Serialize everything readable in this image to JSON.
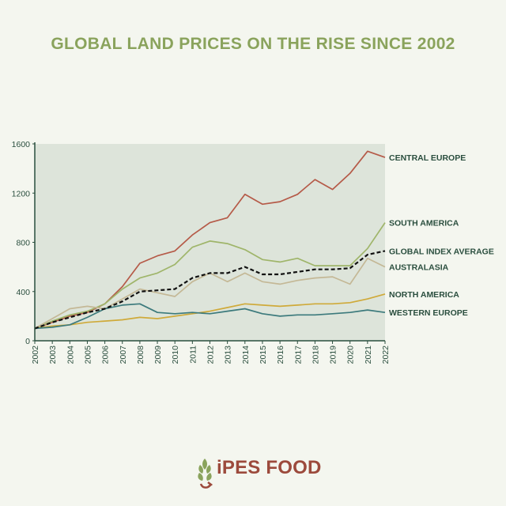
{
  "colors": {
    "background": "#f4f6ef",
    "plot_background": "#dde4da",
    "title": "#8aa35c",
    "axis": "#2a4e3e",
    "logo": "#9c4a3c",
    "logo_leaf": "#8aa35c"
  },
  "logo": {
    "text": "iPES FOOD"
  },
  "chart_data": {
    "type": "line",
    "title": "GLOBAL LAND PRICES ON THE RISE SINCE 2002",
    "xlabel": "",
    "ylabel": "",
    "ylim": [
      0,
      1600
    ],
    "yticks": [
      0,
      400,
      800,
      1200,
      1600
    ],
    "grid": false,
    "legend": "inline-right",
    "categories": [
      "2002",
      "2003",
      "2004",
      "2005",
      "2006",
      "2007",
      "2008",
      "2009",
      "2010",
      "2011",
      "2012",
      "2013",
      "2014",
      "2015",
      "2016",
      "2017",
      "2018",
      "2019",
      "2020",
      "2021",
      "2022"
    ],
    "series": [
      {
        "name": "CENTRAL EUROPE",
        "color": "#b55a48",
        "dashed": false,
        "values": [
          100,
          150,
          200,
          230,
          300,
          440,
          630,
          690,
          730,
          860,
          960,
          1000,
          1190,
          1110,
          1130,
          1190,
          1310,
          1230,
          1360,
          1540,
          1490
        ]
      },
      {
        "name": "SOUTH AMERICA",
        "color": "#9fb56a",
        "dashed": false,
        "values": [
          100,
          160,
          210,
          240,
          300,
          420,
          510,
          550,
          620,
          760,
          810,
          790,
          740,
          660,
          640,
          670,
          610,
          610,
          610,
          750,
          960
        ]
      },
      {
        "name": "GLOBAL INDEX AVERAGE",
        "color": "#111111",
        "dashed": true,
        "values": [
          100,
          150,
          190,
          230,
          260,
          320,
          400,
          410,
          420,
          510,
          550,
          550,
          600,
          540,
          540,
          560,
          580,
          580,
          590,
          700,
          730
        ]
      },
      {
        "name": "AUSTRALASIA",
        "color": "#c4b896",
        "dashed": false,
        "values": [
          100,
          180,
          260,
          280,
          260,
          340,
          420,
          390,
          360,
          480,
          550,
          480,
          550,
          480,
          460,
          490,
          510,
          520,
          460,
          670,
          600
        ]
      },
      {
        "name": "NORTH AMERICA",
        "color": "#cfaa3a",
        "dashed": false,
        "values": [
          100,
          120,
          130,
          150,
          160,
          170,
          190,
          180,
          200,
          220,
          240,
          270,
          300,
          290,
          280,
          290,
          300,
          300,
          310,
          340,
          380
        ]
      },
      {
        "name": "WESTERN EUROPE",
        "color": "#3c7a7c",
        "dashed": false,
        "values": [
          100,
          110,
          130,
          190,
          260,
          290,
          300,
          230,
          220,
          230,
          220,
          240,
          260,
          220,
          200,
          210,
          210,
          220,
          230,
          250,
          230
        ]
      }
    ]
  }
}
